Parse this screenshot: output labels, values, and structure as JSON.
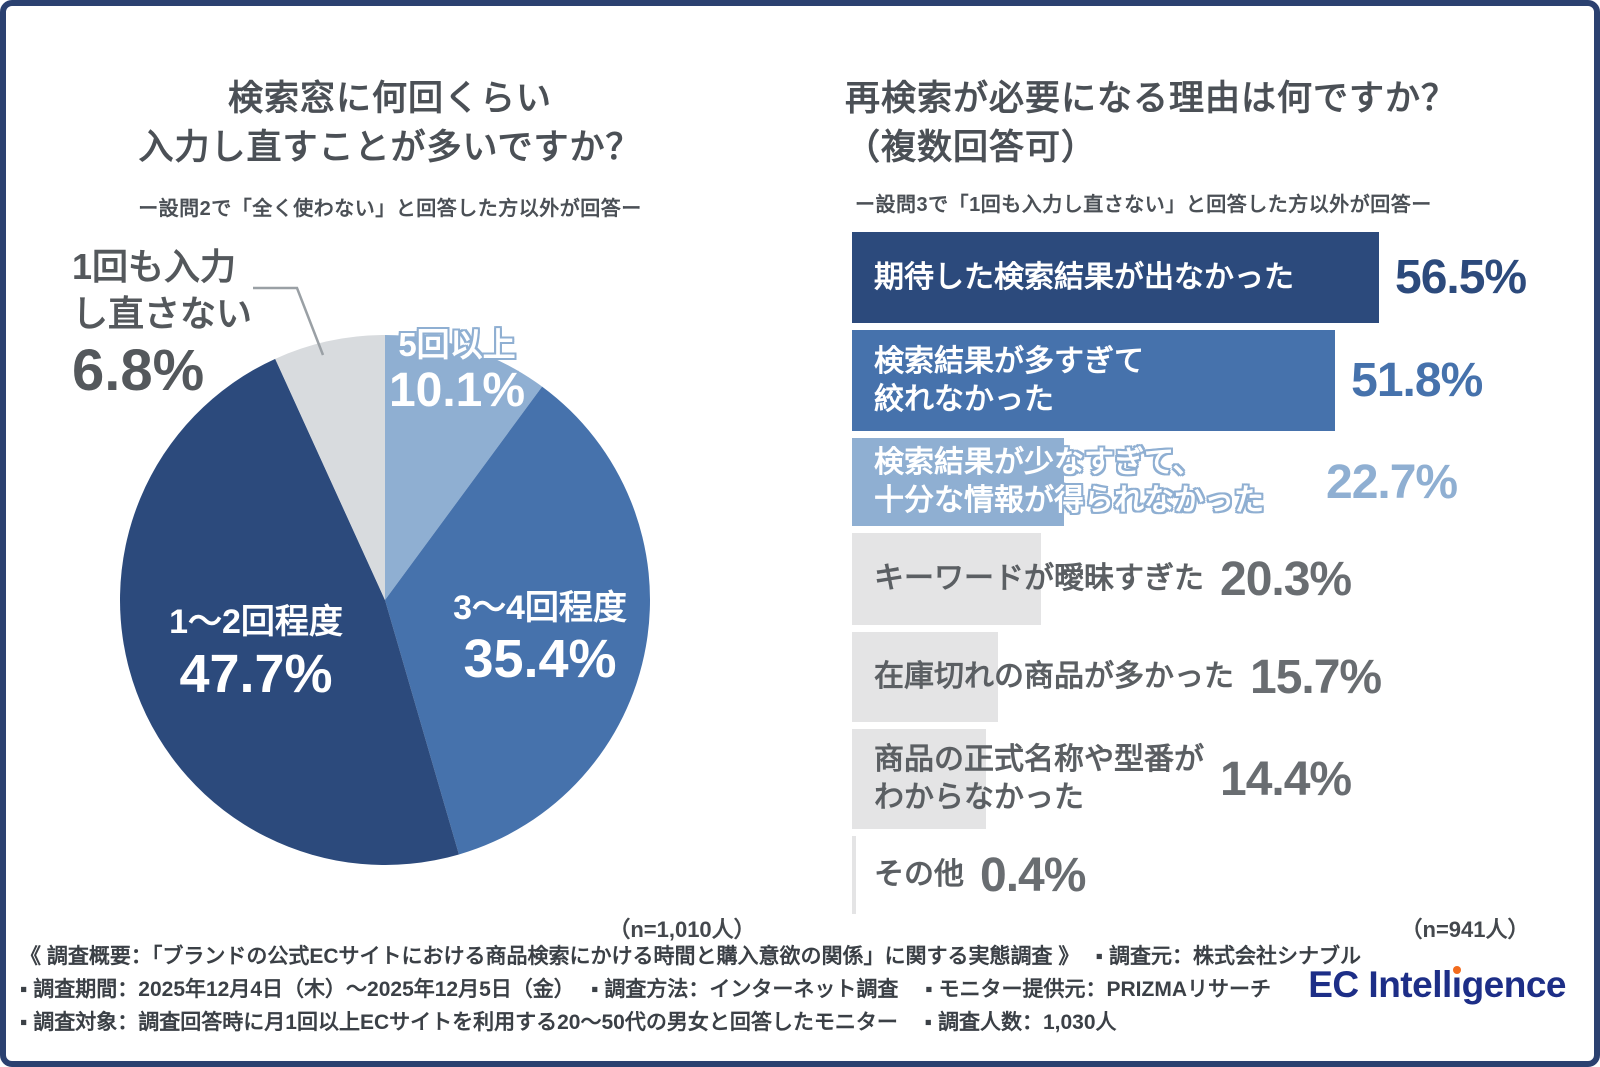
{
  "left_chart": {
    "title_lines": [
      "検索窓に何回くらい",
      "入力し直すことが多いですか？"
    ],
    "subtitle": "ー設問2で「全く使わない」と回答した方以外が回答ー",
    "n_note": "（n=1,010人）"
  },
  "right_chart": {
    "title_lines": [
      "再検索が必要になる理由は何ですか？",
      "（複数回答可）"
    ],
    "subtitle": "ー設問3で「1回も入力し直さない」と回答した方以外が回答ー",
    "n_note": "（n=941人）"
  },
  "chart_data": [
    {
      "type": "pie",
      "title": "検索窓に何回くらい入力し直すことが多いですか？",
      "subtitle_note": "ー設問2で「全く使わない」と回答した方以外が回答ー",
      "categories": [
        "5回以上",
        "3〜4回程度",
        "1〜2回程度",
        "1回も入力し直さない"
      ],
      "values": [
        10.1,
        35.4,
        47.7,
        6.8
      ],
      "display_values": [
        "10.1%",
        "35.4%",
        "47.7%",
        "6.8%"
      ],
      "colors": [
        "#8fafd2",
        "#4672ac",
        "#2c4a7c",
        "#d8dbde"
      ],
      "start": "top",
      "direction": "clockwise",
      "outside_label_lines": [
        "1回も入力",
        "し直さない"
      ],
      "sample_note": "（n=1,010人）"
    },
    {
      "type": "bar",
      "orientation": "horizontal",
      "title": "再検索が必要になる理由は何ですか？（複数回答可）",
      "subtitle_note": "ー設問3で「1回も入力し直さない」と回答した方以外が回答ー",
      "categories": [
        "期待した検索結果が出なかった",
        "検索結果が多すぎて絞れなかった",
        "検索結果が少なすぎて、十分な情報が得られなかった",
        "キーワードが曖昧すぎた",
        "在庫切れの商品が多かった",
        "商品の正式名称や型番がわからなかった",
        "その他"
      ],
      "label_lines": [
        [
          "期待した検索結果が出なかった"
        ],
        [
          "検索結果が多すぎて",
          "絞れなかった"
        ],
        [
          "検索結果が少なすぎて、",
          "十分な情報が得られなかった"
        ],
        [
          "キーワードが曖昧すぎた"
        ],
        [
          "在庫切れの商品が多かった"
        ],
        [
          "商品の正式名称や型番が",
          "わからなかった"
        ],
        [
          "その他"
        ]
      ],
      "values": [
        56.5,
        51.8,
        22.7,
        20.3,
        15.7,
        14.4,
        0.4
      ],
      "display_values": [
        "56.5%",
        "51.8%",
        "22.7%",
        "20.3%",
        "15.7%",
        "14.4%",
        "0.4%"
      ],
      "bar_colors": [
        "#2c4a7c",
        "#4672ac",
        "#8fafd2",
        "#e4e4e5",
        "#e4e4e5",
        "#e4e4e5",
        "#e4e4e5"
      ],
      "value_colors": [
        "#2c4a7c",
        "#4672ac",
        "#8fafd2",
        "#696d71",
        "#696d71",
        "#696d71",
        "#696d71"
      ],
      "label_colors": [
        "#ffffff",
        "#ffffff",
        "outline-white",
        "#5b5f63",
        "#5b5f63",
        "#5b5f63",
        "#5b5f63"
      ],
      "xlim": [
        0,
        56.5
      ],
      "sample_note": "（n=941人）"
    }
  ],
  "footer": {
    "lines": [
      "《 調査概要：「ブランドの公式ECサイトにおける商品検索にかける時間と購入意欲の関係」に関する実態調査 》　 ▪ 調査元：株式会社シナブル",
      "▪ 調査期間：2025年12月4日（木）〜2025年12月5日（金）　 ▪ 調査方法：インターネット調査　 ▪ モニター提供元：PRIZMAリサーチ",
      "▪ 調査対象：調査回答時に月1回以上ECサイトを利用する20〜50代の男女と回答したモニター　 ▪ 調査人数：1,030人"
    ],
    "logo": {
      "text": "EC Intelligence",
      "pre": "EC Intell",
      "dotless_i": "ı",
      "post": "gence",
      "color": "#1d2e87",
      "dot_color": "#f26b1d"
    }
  },
  "frame_color": "#2b4170"
}
